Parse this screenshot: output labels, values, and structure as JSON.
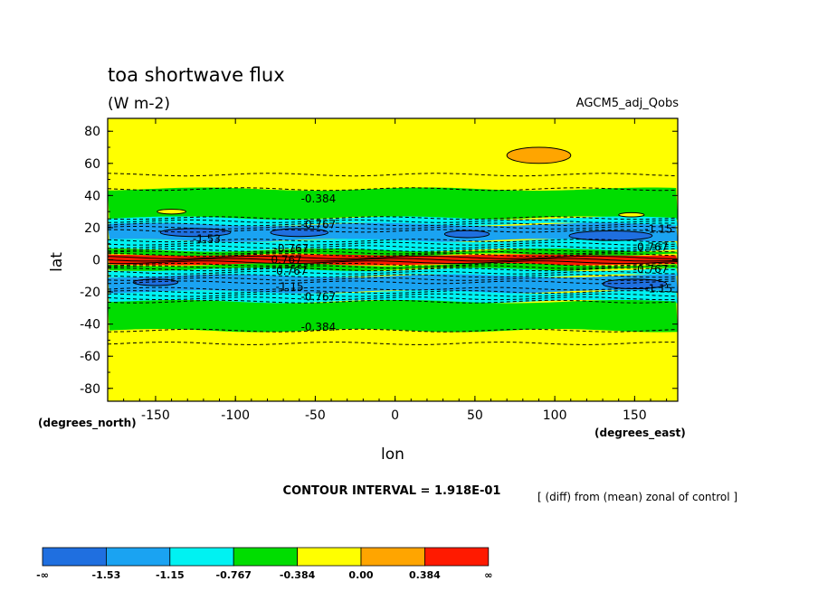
{
  "chart_data": {
    "type": "contour",
    "title": "toa shortwave flux",
    "units": "(W m-2)",
    "dataset": "AGCM5_adj_Qobs",
    "xlabel": "lon",
    "ylabel": "lat",
    "x_units_label": "(degrees_east)",
    "y_units_label": "(degrees_north)",
    "xlim": [
      -180,
      177
    ],
    "ylim": [
      -88,
      88
    ],
    "xticks": [
      -150,
      -100,
      -50,
      0,
      50,
      100,
      150
    ],
    "yticks": [
      -80,
      -60,
      -40,
      -20,
      0,
      20,
      40,
      60,
      80
    ],
    "contour_interval_text": "CONTOUR INTERVAL = 1.918E-01",
    "subtitle": "[ (diff) from (mean) zonal of control ]",
    "contour_labels": [
      {
        "text": "-0.384",
        "lon": -48,
        "lat": 38
      },
      {
        "text": "-0.767",
        "lon": -48,
        "lat": 22
      },
      {
        "text": "-1.53",
        "lon": -118,
        "lat": 13
      },
      {
        "text": "-1.15",
        "lon": 165,
        "lat": 19
      },
      {
        "text": "-0.767",
        "lon": -65,
        "lat": 7
      },
      {
        "text": "0.767",
        "lon": -68,
        "lat": 0
      },
      {
        "text": "-0.767",
        "lon": -66,
        "lat": -7
      },
      {
        "text": "-1.15",
        "lon": -66,
        "lat": -17
      },
      {
        "text": "-0.767",
        "lon": -48,
        "lat": -23
      },
      {
        "text": "-1.15",
        "lon": 165,
        "lat": -18
      },
      {
        "text": "-0.767",
        "lon": 160,
        "lat": 8
      },
      {
        "text": "-0.767",
        "lon": 160,
        "lat": -6
      },
      {
        "text": "-0.384",
        "lon": -48,
        "lat": -42
      }
    ],
    "colorbar": {
      "colors": [
        "#1f6fe0",
        "#1aa3f2",
        "#00f2f2",
        "#00dd00",
        "#ffff00",
        "#ffa500",
        "#ff1a00"
      ],
      "labels": [
        "-∞",
        "-1.53",
        "-1.15",
        "-0.767",
        "-0.384",
        "0.00",
        "0.384",
        "∞"
      ]
    },
    "bands": [
      {
        "lat_min": 44,
        "lat_max": 88,
        "level": "yellow"
      },
      {
        "lat_min": 26,
        "lat_max": 44,
        "level": "green"
      },
      {
        "lat_min": 22,
        "lat_max": 26,
        "level": "cyan"
      },
      {
        "lat_min": 12,
        "lat_max": 22,
        "level": "lightblue"
      },
      {
        "lat_min": 6,
        "lat_max": 12,
        "level": "cyan"
      },
      {
        "lat_min": 3,
        "lat_max": 6,
        "level": "green"
      },
      {
        "lat_min": -3,
        "lat_max": 3,
        "level": "red"
      },
      {
        "lat_min": -6,
        "lat_max": -3,
        "level": "green"
      },
      {
        "lat_min": -10,
        "lat_max": -6,
        "level": "cyan"
      },
      {
        "lat_min": -20,
        "lat_max": -10,
        "level": "lightblue"
      },
      {
        "lat_min": -26,
        "lat_max": -20,
        "level": "cyan"
      },
      {
        "lat_min": -44,
        "lat_max": -26,
        "level": "green"
      },
      {
        "lat_min": -88,
        "lat_max": -44,
        "level": "yellow"
      }
    ]
  }
}
